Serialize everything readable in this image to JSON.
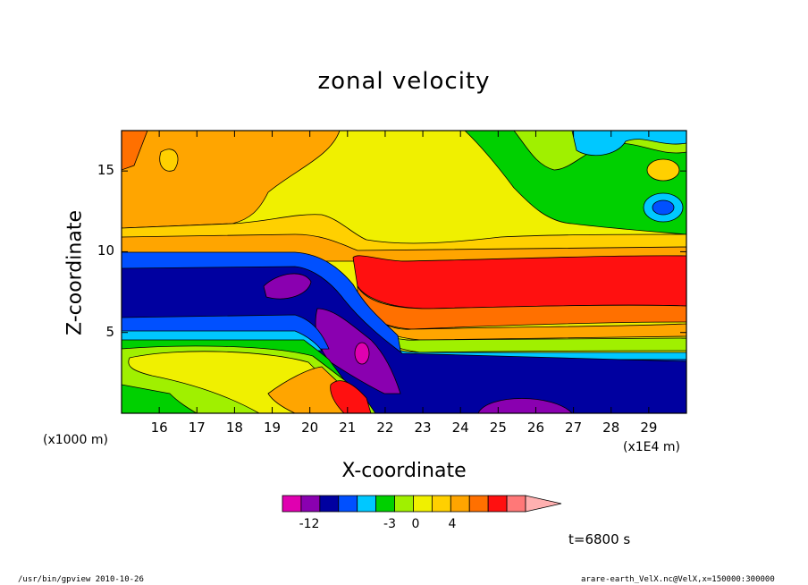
{
  "chart_data": {
    "type": "heatmap",
    "title": "zonal velocity",
    "xlabel": "X-coordinate",
    "ylabel": "Z-coordinate",
    "x_unit_note": "(x1E4 m)",
    "y_unit_note": "(x1000 m)",
    "x_ticks": [
      "16",
      "17",
      "18",
      "19",
      "20",
      "21",
      "22",
      "23",
      "24",
      "25",
      "26",
      "27",
      "28",
      "29"
    ],
    "y_ticks": [
      "5",
      "10",
      "15"
    ],
    "xlim": [
      15,
      30
    ],
    "ylim": [
      0,
      17.5
    ],
    "colorbar": {
      "colors": [
        "#e000b0",
        "#8a00b0",
        "#0000a0",
        "#0050ff",
        "#00c8ff",
        "#00d000",
        "#a0f000",
        "#f0f000",
        "#ffd000",
        "#ffa500",
        "#ff7000",
        "#ff1010",
        "#ff7878",
        "#ffb0b0"
      ],
      "labels": [
        "-12",
        "-3",
        "0",
        "4"
      ]
    },
    "annotation": "t=6800 s"
  },
  "footer": {
    "left": "/usr/bin/gpview   2010-10-26",
    "right": "arare-earth_VelX.nc@VelX,x=150000:300000"
  }
}
